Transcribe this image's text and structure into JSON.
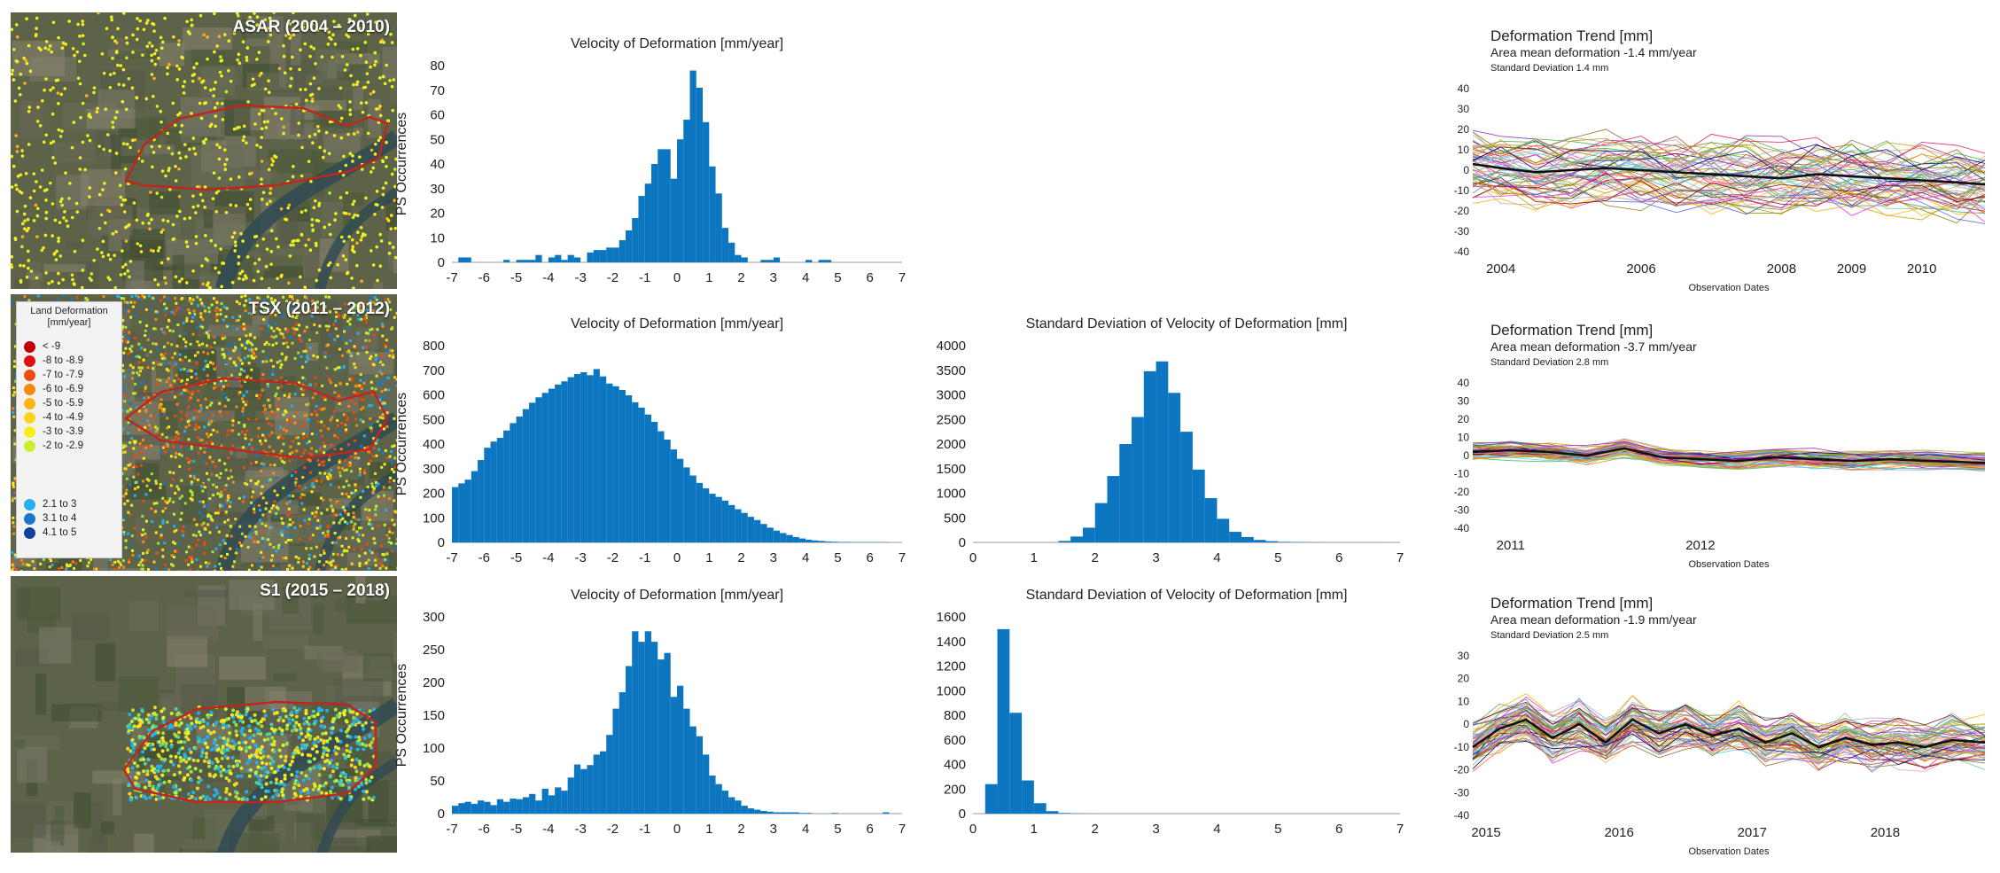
{
  "maps": [
    {
      "title": "ASAR (2004 – 2010)",
      "dominant": "yellow"
    },
    {
      "title": "TSX (2011 – 2012)",
      "dominant": "mixed"
    },
    {
      "title": "S1 (2015 – 2018)",
      "dominant": "bluegreen"
    }
  ],
  "legend": {
    "title_line1": "Land Deformation",
    "title_line2": "[mm/year]",
    "items": [
      {
        "label": "< -9",
        "color": "#c00000"
      },
      {
        "label": "-8 to -8.9",
        "color": "#e01010"
      },
      {
        "label": "-7 to -7.9",
        "color": "#f04a10"
      },
      {
        "label": "-6 to -6.9",
        "color": "#f88a10"
      },
      {
        "label": "-5 to -5.9",
        "color": "#fdb515"
      },
      {
        "label": "-4 to -4.9",
        "color": "#fdd320"
      },
      {
        "label": "-3 to -3.9",
        "color": "#f5ef1e"
      },
      {
        "label": "-2 to -2.9",
        "color": "#c9ef2e"
      },
      {
        "label": "2.1 to 3",
        "color": "#23b0ee"
      },
      {
        "label": "3.1 to 4",
        "color": "#1a78c8"
      },
      {
        "label": "4.1 to 5",
        "color": "#10409a"
      }
    ]
  },
  "chart_data": [
    {
      "id": "vel1",
      "type": "bar",
      "title": "Velocity of Deformation [mm/year]",
      "ylabel": "PS Occurrences",
      "xlim": [
        -7,
        7
      ],
      "ylim": [
        0,
        80
      ],
      "xticks": [
        -7,
        -6,
        -5,
        -4,
        -3,
        -2,
        -1,
        0,
        1,
        2,
        3,
        4,
        5,
        6,
        7
      ],
      "yticks": [
        0,
        10,
        20,
        30,
        40,
        50,
        60,
        70,
        80
      ],
      "bin_start": -7,
      "bin_width": 0.2,
      "values": [
        0,
        2,
        2,
        0,
        0,
        0,
        0,
        0,
        1,
        0,
        1,
        1,
        1,
        3,
        0,
        2,
        3,
        1,
        3,
        2,
        0,
        4,
        5,
        5,
        6,
        6,
        9,
        13,
        18,
        27,
        32,
        40,
        46,
        46,
        34,
        50,
        58,
        78,
        71,
        57,
        39,
        28,
        14,
        8,
        3,
        2,
        0,
        0,
        1,
        1,
        2,
        0,
        0,
        0,
        0,
        1,
        0,
        1,
        1,
        0,
        0,
        0,
        0,
        0,
        0,
        0,
        0,
        0,
        0,
        0
      ]
    },
    {
      "id": "vel2",
      "type": "bar",
      "title": "Velocity of Deformation [mm/year]",
      "ylabel": "PS Occurrences",
      "xlim": [
        -7,
        7
      ],
      "ylim": [
        0,
        800
      ],
      "xticks": [
        -7,
        -6,
        -5,
        -4,
        -3,
        -2,
        -1,
        0,
        1,
        2,
        3,
        4,
        5,
        6,
        7
      ],
      "yticks": [
        0,
        100,
        200,
        300,
        400,
        500,
        600,
        700,
        800
      ],
      "bin_start": -7,
      "bin_width": 0.2,
      "values": [
        225,
        240,
        255,
        290,
        335,
        385,
        410,
        425,
        455,
        485,
        512,
        542,
        568,
        590,
        608,
        625,
        642,
        655,
        672,
        685,
        692,
        680,
        705,
        675,
        646,
        635,
        620,
        598,
        570,
        548,
        520,
        490,
        452,
        418,
        378,
        340,
        305,
        272,
        242,
        220,
        198,
        185,
        170,
        152,
        135,
        120,
        104,
        91,
        75,
        60,
        48,
        38,
        30,
        22,
        16,
        11,
        8,
        6,
        4,
        3,
        2,
        2,
        1,
        1,
        1,
        1,
        1,
        1,
        0,
        0
      ]
    },
    {
      "id": "std2",
      "type": "bar",
      "title": "Standard Deviation of Velocity of Deformation [mm]",
      "ylabel": "",
      "xlim": [
        0,
        7
      ],
      "ylim": [
        0,
        4000
      ],
      "xticks": [
        0,
        1,
        2,
        3,
        4,
        5,
        6,
        7
      ],
      "yticks": [
        0,
        500,
        1000,
        1500,
        2000,
        2500,
        3000,
        3500,
        4000
      ],
      "bin_start": 0,
      "bin_width": 0.2,
      "values": [
        0,
        0,
        0,
        0,
        0,
        0,
        0,
        30,
        120,
        300,
        800,
        1350,
        2000,
        2550,
        3480,
        3680,
        3040,
        2250,
        1480,
        900,
        480,
        215,
        110,
        50,
        25,
        12,
        8,
        5,
        3,
        2,
        2,
        1,
        1,
        1,
        0
      ]
    },
    {
      "id": "vel3",
      "type": "bar",
      "title": "Velocity of Deformation [mm/year]",
      "ylabel": "PS Occurrences",
      "xlim": [
        -7,
        7
      ],
      "ylim": [
        0,
        300
      ],
      "xticks": [
        -7,
        -6,
        -5,
        -4,
        -3,
        -2,
        -1,
        0,
        1,
        2,
        3,
        4,
        5,
        6,
        7
      ],
      "yticks": [
        0,
        50,
        100,
        150,
        200,
        250,
        300
      ],
      "bin_start": -7,
      "bin_width": 0.2,
      "values": [
        12,
        16,
        18,
        15,
        20,
        18,
        13,
        22,
        18,
        23,
        22,
        25,
        30,
        20,
        38,
        28,
        40,
        35,
        55,
        75,
        68,
        74,
        90,
        95,
        120,
        160,
        185,
        225,
        278,
        262,
        278,
        262,
        235,
        245,
        178,
        195,
        160,
        133,
        118,
        90,
        58,
        45,
        35,
        25,
        20,
        12,
        8,
        6,
        4,
        3,
        2,
        2,
        2,
        2,
        1,
        1,
        0,
        0,
        0,
        1,
        0,
        0,
        0,
        0,
        0,
        0,
        0,
        2,
        0,
        0
      ]
    },
    {
      "id": "std3",
      "type": "bar",
      "title": "Standard Deviation of Velocity of Deformation [mm]",
      "ylabel": "",
      "xlim": [
        0,
        7
      ],
      "ylim": [
        0,
        1600
      ],
      "xticks": [
        0,
        1,
        2,
        3,
        4,
        5,
        6,
        7
      ],
      "yticks": [
        0,
        200,
        400,
        600,
        800,
        1000,
        1200,
        1400,
        1600
      ],
      "bin_start": 0,
      "bin_width": 0.2,
      "values": [
        0,
        240,
        1500,
        820,
        270,
        85,
        20,
        5,
        2,
        1,
        0,
        0,
        0,
        0,
        0,
        0,
        0,
        0,
        0,
        0,
        0,
        0,
        0,
        0,
        0,
        0,
        0,
        0,
        0,
        0,
        0,
        0,
        0,
        0,
        0
      ]
    },
    {
      "id": "trend1",
      "type": "line",
      "title": "Deformation Trend [mm]",
      "subtitle": "Area mean deformation -1.4 mm/year",
      "subtitle2": "Standard Deviation 1.4 mm",
      "xlabel": "Observation Dates",
      "x_range": [
        2003.6,
        2010.9
      ],
      "ylim": [
        -40,
        40
      ],
      "yticks": [
        40,
        30,
        20,
        10,
        0,
        -10,
        -20,
        -30,
        -40
      ],
      "xticks": [
        2004,
        2006,
        2008,
        2009,
        2010
      ],
      "mean": {
        "x": [
          2003.6,
          2004,
          2004.5,
          2005,
          2005.5,
          2006,
          2006.5,
          2007,
          2007.5,
          2008,
          2008.5,
          2009,
          2009.5,
          2010,
          2010.5,
          2010.9
        ],
        "y": [
          3,
          1,
          -1,
          0,
          1,
          0,
          -1,
          -2,
          -3,
          -4,
          -2,
          -3,
          -4,
          -5,
          -6,
          -7
        ]
      },
      "spread": 17,
      "n_series": 60
    },
    {
      "id": "trend2",
      "type": "line",
      "title": "Deformation Trend [mm]",
      "subtitle": "Area mean deformation -3.7 mm/year",
      "subtitle2": "Standard Deviation 2.8 mm",
      "xlabel": "Observation Dates",
      "x_range": [
        2010.8,
        2013.5
      ],
      "ylim": [
        -40,
        40
      ],
      "yticks": [
        40,
        30,
        20,
        10,
        0,
        -10,
        -20,
        -30,
        -40
      ],
      "xticks": [
        2011,
        2012
      ],
      "mean": {
        "x": [
          2010.8,
          2011,
          2011.2,
          2011.4,
          2011.6,
          2011.8,
          2012,
          2012.2,
          2012.4,
          2012.6,
          2012.8,
          2013,
          2013.2,
          2013.5
        ],
        "y": [
          2,
          3,
          2,
          0,
          4,
          -1,
          -2,
          -3,
          -1,
          -2,
          -3,
          -2,
          -3,
          -4
        ]
      },
      "spread": 5,
      "n_series": 50
    },
    {
      "id": "trend3",
      "type": "line",
      "title": "Deformation Trend [mm]",
      "subtitle": "Area mean deformation -1.9 mm/year",
      "subtitle2": "Standard Deviation 2.5 mm",
      "xlabel": "Observation Dates",
      "x_range": [
        2014.9,
        2018.75
      ],
      "ylim": [
        -40,
        30
      ],
      "yticks": [
        30,
        20,
        10,
        0,
        -10,
        -20,
        -30,
        -40
      ],
      "xticks": [
        2015,
        2016,
        2017,
        2018
      ],
      "mean": {
        "x": [
          2014.9,
          2015.1,
          2015.3,
          2015.5,
          2015.7,
          2015.9,
          2016.1,
          2016.3,
          2016.5,
          2016.7,
          2016.9,
          2017.1,
          2017.3,
          2017.5,
          2017.7,
          2017.9,
          2018.1,
          2018.3,
          2018.5,
          2018.75
        ],
        "y": [
          -10,
          -2,
          2,
          -6,
          0,
          -8,
          2,
          -4,
          0,
          -5,
          -2,
          -8,
          -4,
          -10,
          -6,
          -9,
          -8,
          -10,
          -7,
          -8
        ]
      },
      "spread": 10,
      "n_series": 60
    }
  ]
}
